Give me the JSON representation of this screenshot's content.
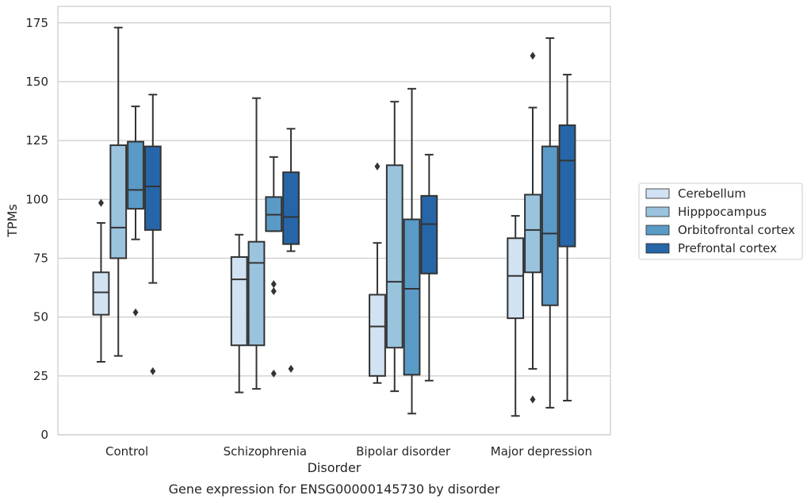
{
  "chart_data": {
    "type": "box",
    "caption": "Gene expression for ENSG00000145730 by disorder",
    "xlabel": "Disorder",
    "ylabel": "TPMs",
    "ylim": [
      0,
      182
    ],
    "yticks": [
      0,
      25,
      50,
      75,
      100,
      125,
      150,
      175
    ],
    "grid": "horizontal",
    "legend_position": "right",
    "categories": [
      "Control",
      "Schizophrenia",
      "Bipolar disorder",
      "Major depression"
    ],
    "series": [
      {
        "name": "Cerebellum",
        "color": "#d1e2f2",
        "boxes": [
          {
            "whislo": 31,
            "q1": 51,
            "med": 60.5,
            "q3": 69,
            "whishi": 90,
            "fliers": [
              98.5
            ]
          },
          {
            "whislo": 18,
            "q1": 38,
            "med": 66,
            "q3": 75.5,
            "whishi": 85,
            "fliers": []
          },
          {
            "whislo": 22,
            "q1": 25,
            "med": 46,
            "q3": 59.5,
            "whishi": 81.5,
            "fliers": [
              114
            ]
          },
          {
            "whislo": 8,
            "q1": 49.5,
            "med": 67.5,
            "q3": 83.5,
            "whishi": 93,
            "fliers": []
          }
        ]
      },
      {
        "name": "Hipppocampus",
        "color": "#9ac4de",
        "boxes": [
          {
            "whislo": 33.5,
            "q1": 75,
            "med": 88,
            "q3": 123,
            "whishi": 173,
            "fliers": []
          },
          {
            "whislo": 19.5,
            "q1": 38,
            "med": 73,
            "q3": 82,
            "whishi": 143,
            "fliers": []
          },
          {
            "whislo": 18.5,
            "q1": 37,
            "med": 65,
            "q3": 114.5,
            "whishi": 141.5,
            "fliers": []
          },
          {
            "whislo": 28,
            "q1": 69,
            "med": 87,
            "q3": 102,
            "whishi": 139,
            "fliers": [
              15,
              161
            ]
          }
        ]
      },
      {
        "name": "Orbitofrontal cortex",
        "color": "#5a9ac7",
        "boxes": [
          {
            "whislo": 83,
            "q1": 96,
            "med": 104,
            "q3": 124.5,
            "whishi": 139.5,
            "fliers": [
              52
            ]
          },
          {
            "whislo": 86.5,
            "q1": 86.5,
            "med": 93.5,
            "q3": 101,
            "whishi": 118,
            "fliers": [
              26,
              61,
              64
            ]
          },
          {
            "whislo": 9,
            "q1": 25.5,
            "med": 62,
            "q3": 91.5,
            "whishi": 147,
            "fliers": []
          },
          {
            "whislo": 11.5,
            "q1": 55,
            "med": 85.5,
            "q3": 122.5,
            "whishi": 168.5,
            "fliers": []
          }
        ]
      },
      {
        "name": "Prefrontal cortex",
        "color": "#2666a8",
        "boxes": [
          {
            "whislo": 64.5,
            "q1": 87,
            "med": 105.5,
            "q3": 122.5,
            "whishi": 144.5,
            "fliers": [
              27
            ]
          },
          {
            "whislo": 78,
            "q1": 81,
            "med": 92.5,
            "q3": 111.5,
            "whishi": 130,
            "fliers": [
              28
            ]
          },
          {
            "whislo": 23,
            "q1": 68.5,
            "med": 89.5,
            "q3": 101.5,
            "whishi": 119,
            "fliers": []
          },
          {
            "whislo": 14.5,
            "q1": 80,
            "med": 116.5,
            "q3": 131.5,
            "whishi": 153,
            "fliers": []
          }
        ]
      }
    ]
  }
}
